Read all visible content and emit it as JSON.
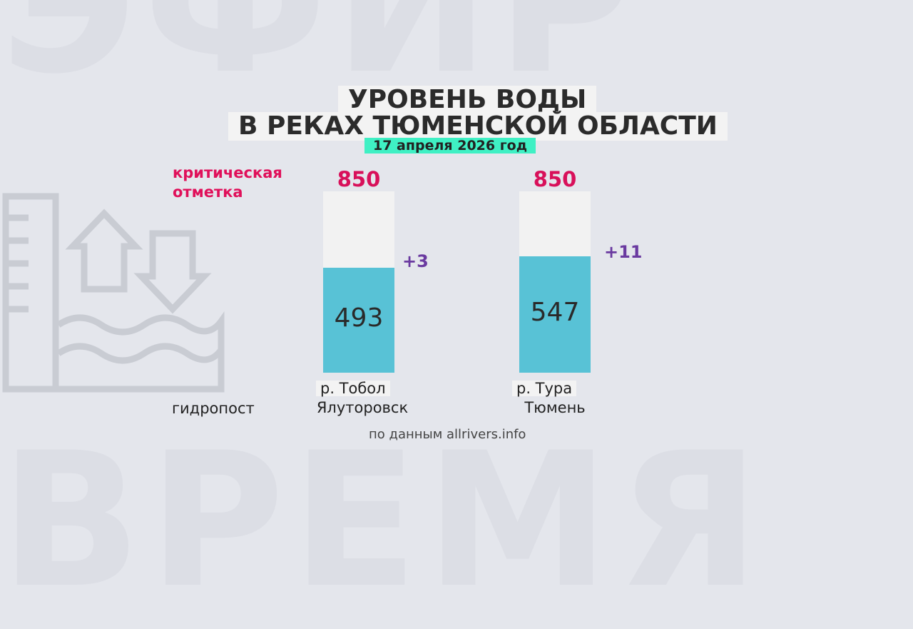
{
  "title": {
    "line1": "УРОВЕНЬ ВОДЫ",
    "line2": "В РЕКАХ ТЮМЕНСКОЙ ОБЛАСТИ",
    "date": "17 апреля 2026 год"
  },
  "labels": {
    "critical": "критическая отметка",
    "post": "гидропост",
    "source": "по данным allrivers.info"
  },
  "colors": {
    "fill": "#58c2d6",
    "track": "#f2f2f2",
    "critical": "#d8105a",
    "change": "#6a3aa0",
    "date_badge": "#3ff0c4"
  },
  "chart_data": {
    "type": "bar",
    "categories": [
      "р. Тобол Ялуторовск",
      "р. Тура Тюмень"
    ],
    "values": [
      493,
      547
    ],
    "critical_level": [
      850,
      850
    ],
    "change": [
      "+3",
      "+11"
    ],
    "rivers": [
      "р. Тобол",
      "р. Тура"
    ],
    "stations": [
      "Ялуторовск",
      "Тюмень"
    ],
    "ylim": [
      0,
      850
    ]
  }
}
